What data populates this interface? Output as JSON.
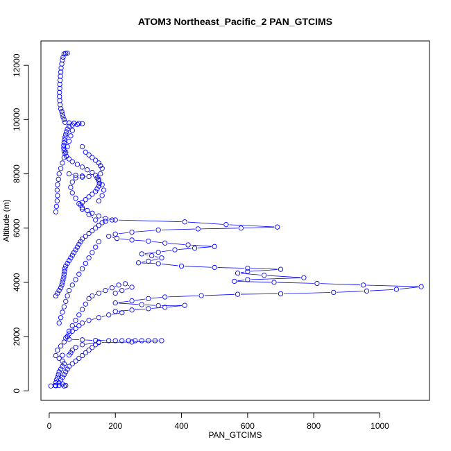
{
  "chart_data": {
    "type": "scatter",
    "title": "ATOM3 Northeast_Pacific_2 PAN_GTCIMS",
    "xlabel": "PAN_GTCIMS",
    "ylabel": "Altitude (m)",
    "xlim": [
      -25,
      1150
    ],
    "ylim": [
      -350,
      12900
    ],
    "xticks": [
      0,
      200,
      400,
      600,
      800,
      1000
    ],
    "yticks": [
      0,
      2000,
      4000,
      6000,
      8000,
      10000,
      12000
    ],
    "grid": false,
    "marker": "open-circle",
    "line": true,
    "color": "#0000ff",
    "series": [
      {
        "points": [
          [
            55,
            12450
          ],
          [
            50,
            12440
          ],
          [
            45,
            12420
          ],
          [
            42,
            12300
          ],
          [
            40,
            12200
          ],
          [
            38,
            12050
          ],
          [
            36,
            11900
          ],
          [
            35,
            11750
          ],
          [
            34,
            11600
          ],
          [
            33,
            11450
          ],
          [
            32,
            11300
          ],
          [
            32,
            11150
          ],
          [
            31,
            11000
          ],
          [
            31,
            10850
          ],
          [
            32,
            10700
          ],
          [
            33,
            10550
          ],
          [
            35,
            10400
          ],
          [
            38,
            10300
          ],
          [
            40,
            10200
          ],
          [
            42,
            10100
          ],
          [
            45,
            10000
          ],
          [
            48,
            9900
          ],
          [
            60,
            9880
          ],
          [
            75,
            9870
          ],
          [
            90,
            9860
          ],
          [
            100,
            9850
          ],
          [
            85,
            9820
          ],
          [
            70,
            9800
          ],
          [
            60,
            9750
          ],
          [
            55,
            9650
          ],
          [
            52,
            9550
          ],
          [
            50,
            9450
          ],
          [
            48,
            9350
          ],
          [
            46,
            9250
          ],
          [
            45,
            9150
          ],
          [
            44,
            9050
          ],
          [
            44,
            8950
          ],
          [
            45,
            8850
          ],
          [
            48,
            8750
          ],
          [
            52,
            8650
          ],
          [
            60,
            8550
          ],
          [
            70,
            8450
          ],
          [
            85,
            8350
          ],
          [
            100,
            8250
          ],
          [
            115,
            8150
          ],
          [
            130,
            8050
          ],
          [
            140,
            7950
          ],
          [
            145,
            7850
          ],
          [
            150,
            7750
          ],
          [
            152,
            7650
          ],
          [
            150,
            7550
          ],
          [
            145,
            7450
          ],
          [
            140,
            7350
          ],
          [
            130,
            7250
          ],
          [
            120,
            7150
          ],
          [
            110,
            7050
          ],
          [
            100,
            6950
          ],
          [
            95,
            6850
          ],
          [
            100,
            6750
          ],
          [
            115,
            6650
          ],
          [
            130,
            6550
          ],
          [
            150,
            6450
          ],
          [
            170,
            6350
          ],
          [
            200,
            6300
          ],
          [
            410,
            6230
          ],
          [
            535,
            6130
          ],
          [
            690,
            6040
          ],
          [
            580,
            6000
          ],
          [
            450,
            5970
          ],
          [
            330,
            5930
          ],
          [
            250,
            5850
          ],
          [
            200,
            5780
          ],
          [
            180,
            5700
          ],
          [
            205,
            5620
          ],
          [
            250,
            5560
          ],
          [
            300,
            5520
          ],
          [
            350,
            5450
          ],
          [
            420,
            5380
          ],
          [
            500,
            5320
          ],
          [
            440,
            5260
          ],
          [
            380,
            5200
          ],
          [
            330,
            5110
          ],
          [
            280,
            5050
          ],
          [
            310,
            4980
          ],
          [
            340,
            4900
          ],
          [
            300,
            4780
          ],
          [
            270,
            4720
          ],
          [
            330,
            4690
          ],
          [
            400,
            4600
          ],
          [
            500,
            4550
          ],
          [
            600,
            4520
          ],
          [
            700,
            4480
          ],
          [
            600,
            4400
          ],
          [
            570,
            4340
          ],
          [
            650,
            4260
          ],
          [
            770,
            4170
          ],
          [
            600,
            4100
          ],
          [
            560,
            4040
          ],
          [
            680,
            4000
          ],
          [
            810,
            3960
          ],
          [
            950,
            3900
          ],
          [
            1125,
            3840
          ],
          [
            1050,
            3740
          ],
          [
            960,
            3680
          ],
          [
            860,
            3630
          ],
          [
            700,
            3580
          ],
          [
            570,
            3560
          ],
          [
            460,
            3510
          ],
          [
            350,
            3460
          ],
          [
            300,
            3400
          ],
          [
            250,
            3320
          ],
          [
            200,
            3240
          ],
          [
            280,
            3180
          ],
          [
            330,
            3140
          ],
          [
            410,
            3150
          ],
          [
            350,
            3080
          ],
          [
            300,
            3030
          ],
          [
            250,
            2980
          ],
          [
            200,
            2930
          ],
          [
            220,
            2880
          ],
          [
            180,
            2800
          ],
          [
            150,
            2700
          ],
          [
            120,
            2600
          ],
          [
            100,
            2500
          ],
          [
            90,
            2400
          ],
          [
            80,
            2300
          ],
          [
            70,
            2200
          ],
          [
            60,
            2100
          ],
          [
            55,
            2000
          ],
          [
            50,
            1950
          ],
          [
            60,
            1900
          ],
          [
            100,
            1880
          ],
          [
            140,
            1860
          ],
          [
            180,
            1850
          ],
          [
            200,
            1850
          ],
          [
            220,
            1850
          ],
          [
            240,
            1850
          ],
          [
            260,
            1850
          ],
          [
            280,
            1850
          ],
          [
            300,
            1850
          ],
          [
            320,
            1850
          ],
          [
            340,
            1850
          ],
          [
            250,
            1800
          ],
          [
            150,
            1780
          ],
          [
            100,
            1700
          ],
          [
            80,
            1600
          ],
          [
            70,
            1500
          ],
          [
            65,
            1400
          ],
          [
            60,
            1320
          ],
          [
            40,
            1310
          ],
          [
            20,
            1300
          ],
          [
            30,
            1200
          ],
          [
            40,
            1100
          ],
          [
            45,
            1000
          ],
          [
            40,
            900
          ],
          [
            35,
            800
          ],
          [
            30,
            700
          ],
          [
            28,
            600
          ],
          [
            25,
            500
          ],
          [
            22,
            400
          ],
          [
            20,
            300
          ],
          [
            18,
            200
          ],
          [
            5,
            180
          ],
          [
            20,
            190
          ],
          [
            30,
            200
          ],
          [
            40,
            250
          ],
          [
            50,
            200
          ],
          [
            45,
            180
          ]
        ]
      },
      {
        "points": [
          [
            20,
            3500
          ],
          [
            25,
            3600
          ],
          [
            30,
            3700
          ],
          [
            35,
            3800
          ],
          [
            38,
            3900
          ],
          [
            40,
            4000
          ],
          [
            42,
            4100
          ],
          [
            44,
            4200
          ],
          [
            45,
            4300
          ],
          [
            46,
            4400
          ],
          [
            47,
            4500
          ],
          [
            50,
            4600
          ],
          [
            55,
            4700
          ],
          [
            60,
            4800
          ],
          [
            65,
            4900
          ],
          [
            70,
            5000
          ],
          [
            75,
            5100
          ],
          [
            80,
            5200
          ],
          [
            85,
            5300
          ],
          [
            90,
            5400
          ],
          [
            95,
            5500
          ],
          [
            100,
            5600
          ],
          [
            110,
            5700
          ],
          [
            120,
            5800
          ],
          [
            130,
            5900
          ],
          [
            140,
            6000
          ],
          [
            150,
            6100
          ],
          [
            160,
            6200
          ],
          [
            170,
            6250
          ],
          [
            190,
            6300
          ]
        ]
      },
      {
        "points": [
          [
            20,
            6600
          ],
          [
            22,
            6800
          ],
          [
            24,
            7000
          ],
          [
            25,
            7200
          ],
          [
            24,
            7400
          ],
          [
            25,
            7600
          ],
          [
            28,
            7800
          ],
          [
            30,
            8000
          ],
          [
            35,
            8200
          ],
          [
            40,
            8400
          ],
          [
            45,
            8600
          ],
          [
            50,
            8800
          ],
          [
            55,
            9000
          ],
          [
            60,
            9200
          ],
          [
            65,
            9400
          ],
          [
            70,
            9600
          ]
        ]
      },
      {
        "points": [
          [
            60,
            8000
          ],
          [
            80,
            7950
          ],
          [
            100,
            7920
          ],
          [
            120,
            7900
          ],
          [
            100,
            7880
          ],
          [
            80,
            7850
          ],
          [
            70,
            7700
          ],
          [
            65,
            7500
          ],
          [
            70,
            7300
          ],
          [
            80,
            7100
          ],
          [
            90,
            6900
          ],
          [
            100,
            6700
          ],
          [
            120,
            6500
          ],
          [
            140,
            6300
          ],
          [
            150,
            6100
          ]
        ]
      },
      {
        "points": [
          [
            100,
            9000
          ],
          [
            110,
            8800
          ],
          [
            120,
            8700
          ],
          [
            130,
            8600
          ],
          [
            140,
            8500
          ],
          [
            150,
            8400
          ],
          [
            155,
            8300
          ],
          [
            160,
            8200
          ],
          [
            155,
            8000
          ],
          [
            150,
            7800
          ],
          [
            160,
            7600
          ],
          [
            165,
            7400
          ],
          [
            160,
            7200
          ],
          [
            150,
            7000
          ]
        ]
      },
      {
        "points": [
          [
            25,
            1500
          ],
          [
            35,
            1650
          ],
          [
            45,
            1800
          ],
          [
            55,
            2000
          ],
          [
            60,
            2200
          ],
          [
            70,
            2400
          ],
          [
            80,
            2600
          ],
          [
            90,
            2800
          ],
          [
            100,
            3000
          ],
          [
            110,
            3200
          ],
          [
            120,
            3400
          ],
          [
            130,
            3500
          ],
          [
            150,
            3600
          ],
          [
            170,
            3700
          ],
          [
            190,
            3800
          ],
          [
            210,
            3900
          ],
          [
            230,
            3950
          ],
          [
            250,
            3820
          ],
          [
            220,
            3700
          ],
          [
            200,
            3600
          ]
        ]
      },
      {
        "points": [
          [
            30,
            2500
          ],
          [
            35,
            2700
          ],
          [
            40,
            2900
          ],
          [
            45,
            3100
          ],
          [
            50,
            3300
          ],
          [
            55,
            3500
          ],
          [
            60,
            3700
          ],
          [
            70,
            3900
          ],
          [
            80,
            4100
          ],
          [
            90,
            4300
          ],
          [
            100,
            4500
          ],
          [
            110,
            4700
          ],
          [
            120,
            4900
          ],
          [
            130,
            5100
          ],
          [
            140,
            5300
          ],
          [
            150,
            5500
          ]
        ]
      },
      {
        "points": [
          [
            150,
            1800
          ],
          [
            140,
            1700
          ],
          [
            130,
            1600
          ],
          [
            120,
            1500
          ],
          [
            110,
            1400
          ],
          [
            100,
            1300
          ],
          [
            90,
            1200
          ],
          [
            80,
            1100
          ],
          [
            70,
            1000
          ],
          [
            60,
            900
          ],
          [
            55,
            800
          ],
          [
            50,
            700
          ],
          [
            45,
            600
          ],
          [
            40,
            500
          ],
          [
            35,
            400
          ],
          [
            30,
            300
          ]
        ]
      }
    ]
  }
}
